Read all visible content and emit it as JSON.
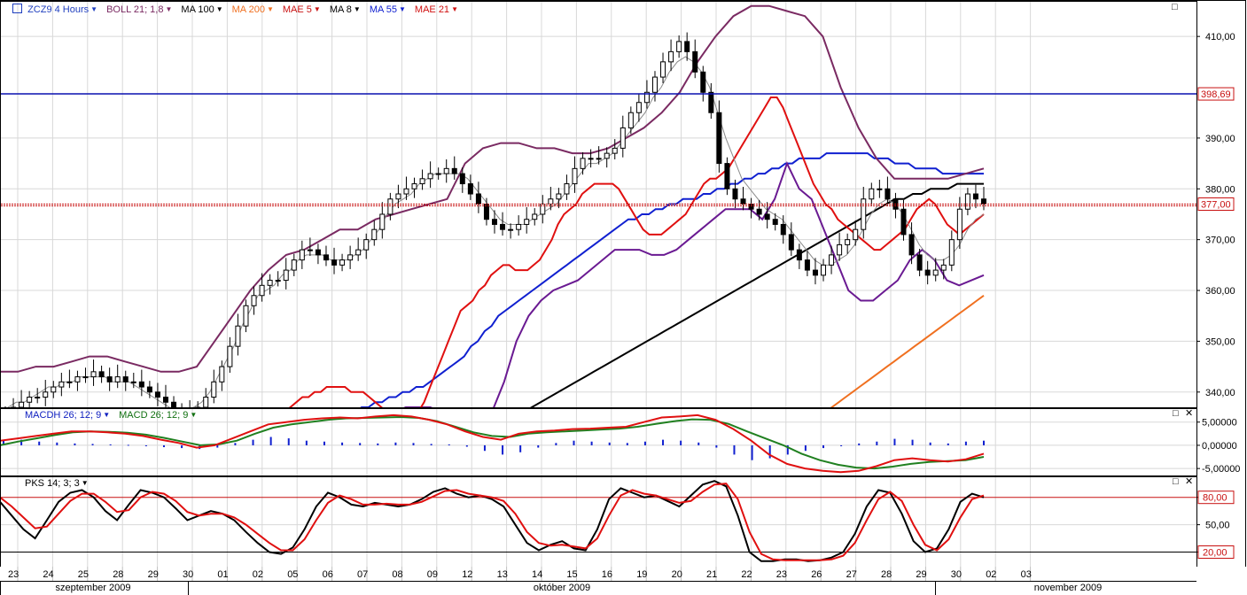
{
  "toolbar": {
    "main": [
      {
        "label": "ZCZ9 4 Hours",
        "color": "#1f3fbf"
      },
      {
        "label": "BOLL 21; 1,8",
        "color": "#7a2a62"
      },
      {
        "label": "MA 100",
        "color": "#000000"
      },
      {
        "label": "MA 200",
        "color": "#f07020"
      },
      {
        "label": "MAE 5",
        "color": "#c81010"
      },
      {
        "label": "MA 8",
        "color": "#000000"
      },
      {
        "label": "MA 55",
        "color": "#1020d0"
      },
      {
        "label": "MAE 21",
        "color": "#d01010"
      }
    ],
    "macd": [
      {
        "label": "MACDH 26; 12; 9",
        "color": "#1020c0"
      },
      {
        "label": "MACD 26; 12; 9",
        "color": "#107010"
      }
    ],
    "stoch": [
      {
        "label": "PKS 14; 3; 3",
        "color": "#000000"
      }
    ]
  },
  "price_labels": {
    "horizontal_line": "398,69",
    "last_price": "377,00"
  },
  "osc_labels": {
    "upper": "80,00",
    "lower": "20,00"
  },
  "chart_data": {
    "type": "line",
    "instrument": "ZCZ9",
    "timeframe": "4 Hours",
    "price_axis": {
      "ylim": [
        337,
        417
      ],
      "ticks": [
        340,
        350,
        360,
        370,
        380,
        390,
        410
      ],
      "tick_labels": [
        "340,00",
        "350,00",
        "360,00",
        "370,00",
        "380,00",
        "390,00",
        "410,00"
      ]
    },
    "macd_axis": {
      "ylim": [
        -6.5,
        8
      ],
      "ticks": [
        5,
        0,
        -5
      ],
      "tick_labels": [
        "5,00000",
        "0,00000",
        "-5,00000"
      ]
    },
    "stoch_axis": {
      "ylim": [
        4,
        103
      ],
      "ticks": [
        80,
        50,
        20
      ],
      "tick_labels": [
        "80,00",
        "50,00",
        "20,00"
      ]
    },
    "x_ticks": [
      "23",
      "24",
      "25",
      "28",
      "29",
      "30",
      "01",
      "02",
      "05",
      "06",
      "07",
      "08",
      "09",
      "12",
      "13",
      "14",
      "15",
      "16",
      "19",
      "20",
      "21",
      "22",
      "23",
      "26",
      "27",
      "28",
      "29",
      "30",
      "02",
      "03"
    ],
    "months": [
      "szeptember 2009",
      "október 2009",
      "november 2009"
    ],
    "horizontal_line": 398.69,
    "last_price": 377.0,
    "close": [
      336,
      337,
      338,
      339,
      339,
      340,
      341,
      342,
      342,
      343,
      343,
      344,
      343,
      342,
      343,
      342,
      342,
      341,
      340,
      339,
      338,
      336,
      335,
      336,
      337,
      339,
      342,
      345,
      349,
      353,
      357,
      359,
      361,
      362,
      362,
      364,
      366,
      368,
      368,
      367,
      366,
      365,
      366,
      367,
      368,
      370,
      372,
      375,
      378,
      379,
      380,
      381,
      382,
      383,
      383,
      384,
      383,
      381,
      379,
      377,
      374,
      373,
      372,
      372,
      373,
      374,
      375,
      377,
      378,
      379,
      381,
      384,
      386,
      386,
      386,
      387,
      388,
      392,
      395,
      397,
      399,
      402,
      405,
      407,
      409,
      407,
      403,
      399,
      395,
      385,
      380,
      378,
      377,
      376,
      375,
      374,
      373,
      371,
      368,
      366,
      364,
      363,
      365,
      367,
      369,
      370,
      372,
      378,
      380,
      380,
      378,
      376,
      371,
      367,
      364,
      363,
      364,
      365,
      370,
      376,
      379,
      378,
      377
    ],
    "ma8": [
      336,
      337,
      338,
      338,
      339,
      340,
      341,
      341,
      342,
      342,
      343,
      343,
      343,
      343,
      342,
      342,
      342,
      341,
      340,
      339,
      338,
      337,
      336,
      336,
      337,
      338,
      340,
      343,
      346,
      349,
      353,
      356,
      359,
      360,
      361,
      363,
      364,
      366,
      367,
      367,
      367,
      366,
      366,
      366,
      367,
      368,
      370,
      372,
      375,
      377,
      378,
      379,
      381,
      382,
      383,
      383,
      383,
      383,
      382,
      380,
      378,
      376,
      374,
      373,
      373,
      373,
      374,
      375,
      376,
      377,
      379,
      381,
      383,
      385,
      385,
      386,
      387,
      389,
      391,
      393,
      395,
      398,
      400,
      403,
      405,
      406,
      405,
      403,
      400,
      395,
      390,
      386,
      382,
      380,
      378,
      376,
      375,
      374,
      372,
      370,
      368,
      366,
      365,
      365,
      366,
      367,
      369,
      372,
      375,
      377,
      378,
      377,
      375,
      372,
      369,
      367,
      366,
      366,
      367,
      369,
      372,
      374,
      375
    ],
    "mae5": [
      333,
      334,
      335,
      336,
      337,
      338,
      339,
      339,
      340,
      340,
      341,
      341,
      341,
      341,
      340,
      340,
      340,
      339,
      338,
      337,
      336,
      335,
      334,
      334,
      335,
      336,
      338,
      341,
      344,
      347,
      350,
      353,
      356,
      357,
      358,
      360,
      361,
      363,
      364,
      365,
      365,
      364,
      364,
      364,
      365,
      366,
      368,
      370,
      373,
      375,
      376,
      377,
      379,
      380,
      381,
      381,
      381,
      381,
      380,
      378,
      376,
      374,
      372,
      371,
      371,
      371,
      372,
      373,
      374,
      375,
      377,
      379,
      381,
      382,
      382,
      383,
      384,
      386,
      388,
      390,
      392,
      394,
      396,
      398,
      398,
      396,
      393,
      390,
      387,
      384,
      381,
      379,
      377,
      376,
      374,
      373,
      372,
      371,
      370,
      369,
      368,
      368,
      369,
      370,
      371,
      372,
      374,
      376,
      377,
      378,
      377,
      375,
      373,
      372,
      371,
      372,
      373,
      374,
      375
    ],
    "ma55": [
      324,
      325,
      326,
      327,
      328,
      329,
      330,
      331,
      332,
      333,
      334,
      335,
      335,
      336,
      337,
      337,
      338,
      338,
      339,
      339,
      340,
      340,
      341,
      341,
      342,
      343,
      344,
      345,
      346,
      347,
      349,
      350,
      352,
      353,
      355,
      356,
      357,
      358,
      359,
      360,
      361,
      362,
      363,
      364,
      365,
      366,
      367,
      368,
      369,
      370,
      371,
      372,
      373,
      374,
      374,
      375,
      375,
      376,
      376,
      377,
      377,
      378,
      378,
      378,
      379,
      379,
      380,
      380,
      381,
      381,
      382,
      382,
      383,
      383,
      384,
      384,
      385,
      385,
      386,
      386,
      386,
      386,
      387,
      387,
      387,
      387,
      387,
      387,
      387,
      386,
      386,
      386,
      385,
      385,
      385,
      384,
      384,
      384,
      384,
      383,
      383,
      383,
      383,
      383,
      383,
      383
    ],
    "ma100": [
      320,
      321,
      322,
      323,
      324,
      325,
      326,
      327,
      328,
      329,
      330,
      331,
      332,
      333,
      334,
      335,
      336,
      337,
      338,
      339,
      340,
      341,
      342,
      343,
      344,
      345,
      346,
      347,
      348,
      349,
      350,
      351,
      352,
      353,
      354,
      355,
      356,
      357,
      358,
      359,
      360,
      361,
      362,
      363,
      364,
      365,
      366,
      367,
      368,
      369,
      370,
      371,
      372,
      373,
      374,
      375,
      376,
      377,
      378,
      378,
      379,
      379,
      380,
      380,
      380,
      381,
      381,
      381,
      381
    ],
    "ma200": [
      300,
      301,
      302,
      303,
      304,
      305,
      306,
      307,
      308,
      309,
      310,
      311,
      312,
      313,
      314,
      315,
      316,
      317,
      318,
      319,
      320,
      321,
      322,
      323,
      324,
      325,
      326,
      327,
      328,
      329,
      330,
      331,
      332,
      333,
      334,
      335,
      336,
      337,
      338,
      339,
      340,
      341,
      342,
      343,
      344,
      345,
      346,
      347,
      348,
      349,
      350,
      351,
      352,
      353,
      354,
      355,
      356,
      357,
      358,
      359
    ],
    "boll_upper": [
      344,
      344,
      345,
      345,
      346,
      347,
      347,
      346,
      345,
      344,
      344,
      345,
      350,
      355,
      360,
      364,
      367,
      368,
      370,
      372,
      372,
      374,
      375,
      376,
      377,
      378,
      385,
      388,
      389,
      389,
      388,
      388,
      387,
      387,
      388,
      390,
      392,
      395,
      399,
      405,
      410,
      414,
      416,
      416,
      415,
      414,
      410,
      400,
      392,
      386,
      382,
      382,
      382,
      382,
      383,
      384
    ],
    "boll_lower": [
      335,
      336,
      337,
      337,
      337,
      336,
      335,
      334,
      333,
      336,
      342,
      350,
      355,
      358,
      360,
      361,
      362,
      364,
      366,
      368,
      368,
      368,
      367,
      367,
      368,
      370,
      372,
      374,
      376,
      376,
      376,
      374,
      378,
      385,
      380,
      378,
      372,
      366,
      360,
      358,
      358,
      360,
      362,
      366,
      368,
      366,
      362,
      361,
      362,
      363
    ],
    "macd": [
      1,
      1.5,
      2,
      2.5,
      3,
      3,
      2.8,
      2.5,
      2,
      1.2,
      0.5,
      -0.5,
      0,
      1.5,
      3,
      4.5,
      5,
      5.5,
      5.8,
      6,
      5.8,
      6.2,
      6.5,
      6.2,
      5.5,
      4.5,
      3,
      1.8,
      1.2,
      2.5,
      3,
      3.2,
      3.5,
      3.6,
      3.8,
      4,
      5,
      6,
      6.2,
      6.5,
      5.5,
      3.5,
      1,
      -2,
      -4,
      -5,
      -5.5,
      -5.8,
      -5.5,
      -4.5,
      -3.2,
      -2.8,
      -3.2,
      -3.5,
      -3,
      -1.8
    ],
    "macd_signal": [
      0,
      0.8,
      1.5,
      2.2,
      2.8,
      3,
      2.9,
      2.7,
      2.3,
      1.6,
      0.8,
      0,
      0.2,
      1,
      2.5,
      3.8,
      4.5,
      5,
      5.5,
      5.8,
      5.9,
      6,
      6.1,
      5.9,
      5.2,
      4,
      2.8,
      2,
      1.8,
      2.5,
      2.8,
      3,
      3.2,
      3.4,
      3.6,
      4,
      4.6,
      5.2,
      5.6,
      5.5,
      4.6,
      3,
      1.5,
      0,
      -1.8,
      -3.2,
      -4.2,
      -4.8,
      -5,
      -4.6,
      -4,
      -3.6,
      -3.4,
      -3.2,
      -2.5
    ],
    "macd_hist": [
      1,
      1.2,
      0.8,
      0.6,
      0.4,
      0.3,
      0.2,
      0.1,
      -0.2,
      -0.4,
      -0.6,
      -0.8,
      -0.5,
      0.5,
      1.2,
      1.8,
      1.5,
      1,
      0.8,
      0.6,
      0.5,
      0.4,
      0.6,
      0.5,
      0.3,
      0.2,
      -0.3,
      -1.2,
      -2,
      -1.5,
      -0.5,
      0.5,
      1,
      0.8,
      0.6,
      0.5,
      0.8,
      1.2,
      1,
      0.6,
      -0.5,
      -2,
      -3.2,
      -2.8,
      -2,
      -1.2,
      -0.6,
      -0.2,
      0.4,
      0.8,
      1.4,
      1.2,
      0.6,
      0.4,
      0.8,
      1
    ],
    "stoch_k": [
      75,
      60,
      45,
      35,
      55,
      75,
      85,
      88,
      80,
      65,
      55,
      72,
      88,
      85,
      80,
      68,
      55,
      60,
      65,
      62,
      55,
      42,
      30,
      20,
      18,
      25,
      45,
      70,
      85,
      80,
      72,
      70,
      74,
      72,
      70,
      72,
      78,
      86,
      90,
      84,
      80,
      82,
      78,
      70,
      50,
      30,
      22,
      28,
      32,
      24,
      22,
      45,
      78,
      90,
      85,
      80,
      82,
      76,
      70,
      82,
      94,
      98,
      92,
      60,
      20,
      10,
      10,
      12,
      12,
      10,
      11,
      14,
      20,
      40,
      70,
      88,
      85,
      62,
      32,
      20,
      24,
      45,
      75,
      84,
      80
    ],
    "stoch_d": [
      80,
      70,
      58,
      46,
      48,
      62,
      76,
      84,
      84,
      75,
      64,
      66,
      80,
      86,
      84,
      76,
      64,
      60,
      62,
      62,
      58,
      50,
      40,
      30,
      22,
      22,
      34,
      55,
      74,
      82,
      78,
      72,
      72,
      73,
      72,
      72,
      75,
      81,
      87,
      88,
      84,
      82,
      80,
      76,
      62,
      42,
      30,
      27,
      28,
      26,
      24,
      35,
      60,
      82,
      88,
      84,
      82,
      78,
      74,
      76,
      86,
      94,
      95,
      78,
      42,
      18,
      12,
      11,
      11,
      11,
      11,
      12,
      16,
      30,
      55,
      78,
      86,
      76,
      50,
      28,
      22,
      34,
      58,
      78,
      82
    ]
  }
}
